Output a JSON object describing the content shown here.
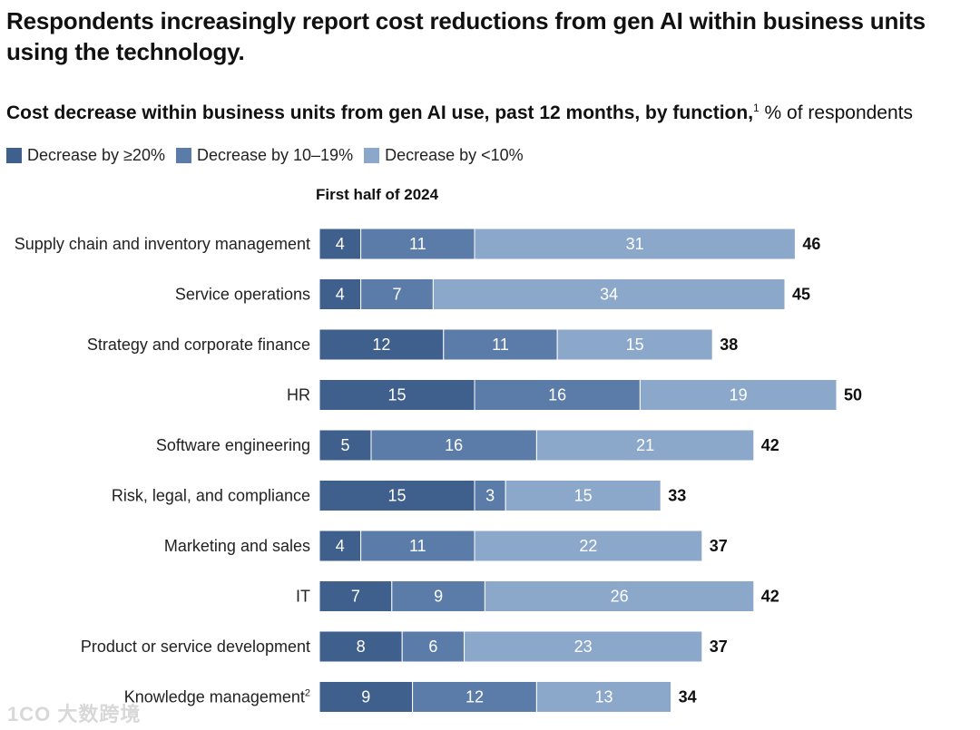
{
  "title": "Respondents increasingly report cost reductions from gen AI within business units using the technology.",
  "subtitle": {
    "bold": "Cost decrease within business units from gen AI use, past 12 months, by function,",
    "footnote": "1",
    "unit": " % of respondents"
  },
  "period_label": "First half of 2024",
  "watermark": "1CO 大数跨境",
  "colors": {
    "ge20": "#3f5f8c",
    "10to19": "#5b7ca8",
    "lt10": "#8ba7c9"
  },
  "chart_data": {
    "type": "bar",
    "orientation": "horizontal",
    "stacked": true,
    "title": "Cost decrease within business units from gen AI use, past 12 months, by function",
    "xlabel": "% of respondents",
    "xlim": [
      0,
      50
    ],
    "grid": false,
    "legend_position": "top-left",
    "categories": [
      "Supply chain and inventory management",
      "Service operations",
      "Strategy and corporate finance",
      "HR",
      "Software engineering",
      "Risk, legal, and compliance",
      "Marketing and sales",
      "IT",
      "Product or service development",
      "Knowledge management"
    ],
    "category_footnotes": [
      "",
      "",
      "",
      "",
      "",
      "",
      "",
      "",
      "",
      "2"
    ],
    "series": [
      {
        "name": "Decrease by ≥20%",
        "values": [
          4,
          4,
          12,
          15,
          5,
          15,
          4,
          7,
          8,
          9
        ]
      },
      {
        "name": "Decrease by 10–19%",
        "values": [
          11,
          7,
          11,
          16,
          16,
          3,
          11,
          9,
          6,
          12
        ]
      },
      {
        "name": "Decrease by <10%",
        "values": [
          31,
          34,
          15,
          19,
          21,
          15,
          22,
          26,
          23,
          13
        ]
      }
    ],
    "totals": [
      46,
      45,
      38,
      50,
      42,
      33,
      37,
      42,
      37,
      34
    ]
  }
}
